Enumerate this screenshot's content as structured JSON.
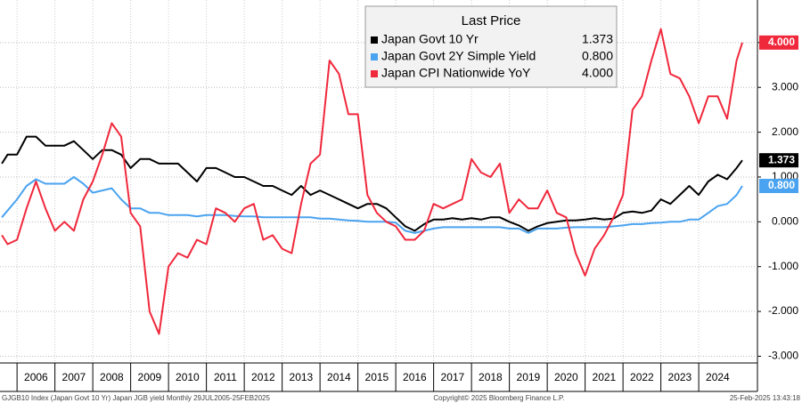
{
  "chart_data": {
    "type": "line",
    "legend_title": "Last Price",
    "x": [
      2005.6,
      2005.75,
      2006.0,
      2006.25,
      2006.5,
      2006.75,
      2007.0,
      2007.25,
      2007.5,
      2007.75,
      2008.0,
      2008.25,
      2008.5,
      2008.75,
      2009.0,
      2009.25,
      2009.5,
      2009.75,
      2010.0,
      2010.25,
      2010.5,
      2010.75,
      2011.0,
      2011.25,
      2011.5,
      2011.75,
      2012.0,
      2012.25,
      2012.5,
      2012.75,
      2013.0,
      2013.25,
      2013.5,
      2013.75,
      2014.0,
      2014.25,
      2014.5,
      2014.75,
      2015.0,
      2015.25,
      2015.5,
      2015.75,
      2016.0,
      2016.25,
      2016.5,
      2016.75,
      2017.0,
      2017.25,
      2017.5,
      2017.75,
      2018.0,
      2018.25,
      2018.5,
      2018.75,
      2019.0,
      2019.25,
      2019.5,
      2019.75,
      2020.0,
      2020.25,
      2020.5,
      2020.75,
      2021.0,
      2021.25,
      2021.5,
      2021.75,
      2022.0,
      2022.25,
      2022.5,
      2022.75,
      2023.0,
      2023.25,
      2023.5,
      2023.75,
      2024.0,
      2024.25,
      2024.5,
      2024.75,
      2025.0,
      2025.15
    ],
    "series": [
      {
        "name": "Japan Govt 10 Yr",
        "color": "#000000",
        "last_value_label": "1.373",
        "values": [
          1.3,
          1.5,
          1.5,
          1.9,
          1.9,
          1.7,
          1.7,
          1.7,
          1.8,
          1.6,
          1.4,
          1.6,
          1.6,
          1.5,
          1.2,
          1.4,
          1.4,
          1.3,
          1.3,
          1.3,
          1.1,
          0.9,
          1.2,
          1.2,
          1.1,
          1.0,
          1.0,
          0.9,
          0.8,
          0.8,
          0.7,
          0.6,
          0.8,
          0.6,
          0.7,
          0.6,
          0.5,
          0.4,
          0.3,
          0.4,
          0.4,
          0.3,
          0.1,
          -0.1,
          -0.2,
          -0.05,
          0.05,
          0.05,
          0.08,
          0.05,
          0.08,
          0.05,
          0.1,
          0.1,
          0.0,
          -0.08,
          -0.2,
          -0.1,
          -0.03,
          0.0,
          0.03,
          0.03,
          0.05,
          0.08,
          0.05,
          0.07,
          0.2,
          0.23,
          0.2,
          0.25,
          0.5,
          0.4,
          0.6,
          0.8,
          0.6,
          0.9,
          1.05,
          0.95,
          1.2,
          1.373
        ]
      },
      {
        "name": "Japan Govt 2Y Simple Yield",
        "color": "#4aa3f0",
        "last_value_label": "0.800",
        "values": [
          0.1,
          0.25,
          0.5,
          0.8,
          0.95,
          0.85,
          0.85,
          0.85,
          1.0,
          0.85,
          0.65,
          0.7,
          0.75,
          0.5,
          0.3,
          0.3,
          0.2,
          0.2,
          0.15,
          0.15,
          0.15,
          0.12,
          0.15,
          0.15,
          0.15,
          0.13,
          0.12,
          0.12,
          0.1,
          0.1,
          0.1,
          0.1,
          0.1,
          0.1,
          0.07,
          0.07,
          0.05,
          0.03,
          0.02,
          0.0,
          0.0,
          0.0,
          -0.02,
          -0.2,
          -0.25,
          -0.2,
          -0.15,
          -0.12,
          -0.12,
          -0.12,
          -0.12,
          -0.12,
          -0.12,
          -0.12,
          -0.15,
          -0.15,
          -0.25,
          -0.15,
          -0.15,
          -0.15,
          -0.13,
          -0.12,
          -0.12,
          -0.12,
          -0.12,
          -0.1,
          -0.08,
          -0.05,
          -0.05,
          -0.03,
          -0.02,
          0.0,
          0.0,
          0.05,
          0.05,
          0.2,
          0.35,
          0.4,
          0.6,
          0.8
        ]
      },
      {
        "name": "Japan CPI Nationwide YoY",
        "color": "#f0283c",
        "last_value_label": "4.000",
        "values": [
          -0.3,
          -0.5,
          -0.4,
          0.3,
          0.9,
          0.3,
          -0.2,
          0.0,
          -0.2,
          0.5,
          0.9,
          1.5,
          2.2,
          1.9,
          0.2,
          -0.1,
          -2.0,
          -2.5,
          -1.0,
          -0.7,
          -0.8,
          -0.4,
          -0.5,
          0.3,
          0.2,
          0.0,
          0.3,
          0.4,
          -0.4,
          -0.3,
          -0.6,
          -0.7,
          0.4,
          1.3,
          1.5,
          3.6,
          3.3,
          2.4,
          2.4,
          0.6,
          0.2,
          0.0,
          -0.1,
          -0.4,
          -0.4,
          -0.2,
          0.4,
          0.3,
          0.4,
          0.5,
          1.4,
          1.1,
          1.0,
          1.3,
          0.2,
          0.5,
          0.3,
          0.3,
          0.7,
          0.2,
          0.1,
          -0.7,
          -1.2,
          -0.6,
          -0.3,
          0.1,
          0.6,
          2.5,
          2.8,
          3.6,
          4.3,
          3.3,
          3.2,
          2.8,
          2.2,
          2.8,
          2.8,
          2.3,
          3.6,
          4.0
        ]
      }
    ],
    "xlim": [
      2005.55,
      2025.55
    ],
    "xticks": [
      2006,
      2007,
      2008,
      2009,
      2010,
      2011,
      2012,
      2013,
      2014,
      2015,
      2016,
      2017,
      2018,
      2019,
      2020,
      2021,
      2022,
      2023,
      2024
    ],
    "ylim": [
      -3.15,
      4.95
    ],
    "yticks": [
      {
        "value": -3,
        "label": "-3.000"
      },
      {
        "value": -2,
        "label": "-2.000"
      },
      {
        "value": -1,
        "label": "-1.000"
      },
      {
        "value": 0,
        "label": "0.000"
      },
      {
        "value": 1,
        "label": "1.000"
      },
      {
        "value": 2,
        "label": "2.000"
      },
      {
        "value": 3,
        "label": "3.000"
      },
      {
        "value": 4,
        "label": "4.000"
      }
    ],
    "grid": true,
    "footer_left": "GJGB10 Index (Japan Govt 10 Yr) Japan JGB yield  Monthly 29JUL2005-25FEB2025",
    "footer_center": "Copyright© 2025 Bloomberg Finance L.P.",
    "footer_right": "25-Feb-2025 13:43:18"
  }
}
